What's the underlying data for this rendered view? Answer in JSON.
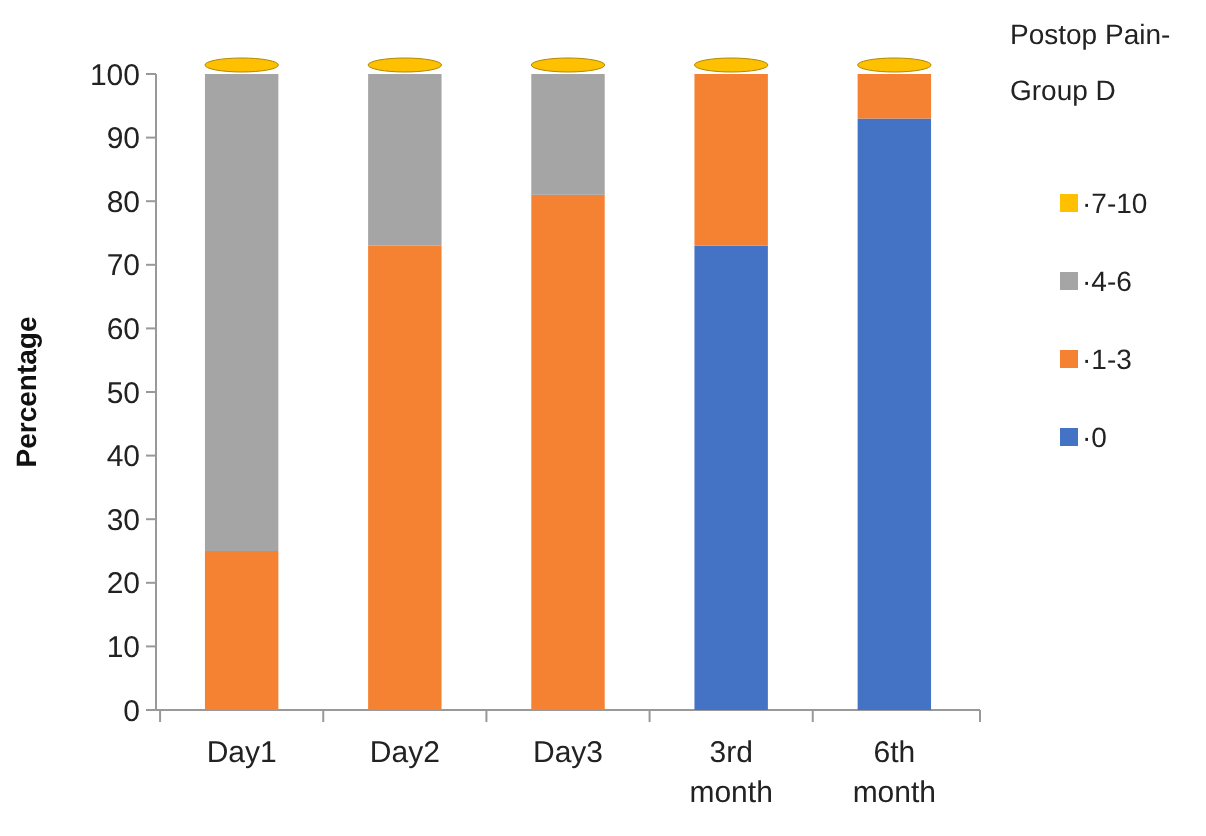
{
  "chart_data": {
    "type": "bar",
    "stacked": true,
    "ylabel": "Percentage",
    "legend_title": "Postop Pain-Group D",
    "legend": "right",
    "grid": false,
    "categories": [
      "Day1",
      "Day2",
      "Day3",
      "3rd month",
      "6th month"
    ],
    "ylim": [
      0,
      100
    ],
    "yticks": [
      0,
      10,
      20,
      30,
      40,
      50,
      60,
      70,
      80,
      90,
      100
    ],
    "series": [
      {
        "name": "·0",
        "color": "#4472c4",
        "values": [
          0,
          0,
          0,
          73,
          93
        ]
      },
      {
        "name": "·1-3",
        "color": "#f58232",
        "values": [
          25,
          73,
          81,
          27,
          7
        ]
      },
      {
        "name": "·4-6",
        "color": "#a5a5a5",
        "values": [
          75,
          27,
          19,
          0,
          0
        ]
      },
      {
        "name": "·7-10",
        "color": "#ffc000",
        "values": [
          0,
          0,
          0,
          0,
          0
        ]
      }
    ]
  }
}
